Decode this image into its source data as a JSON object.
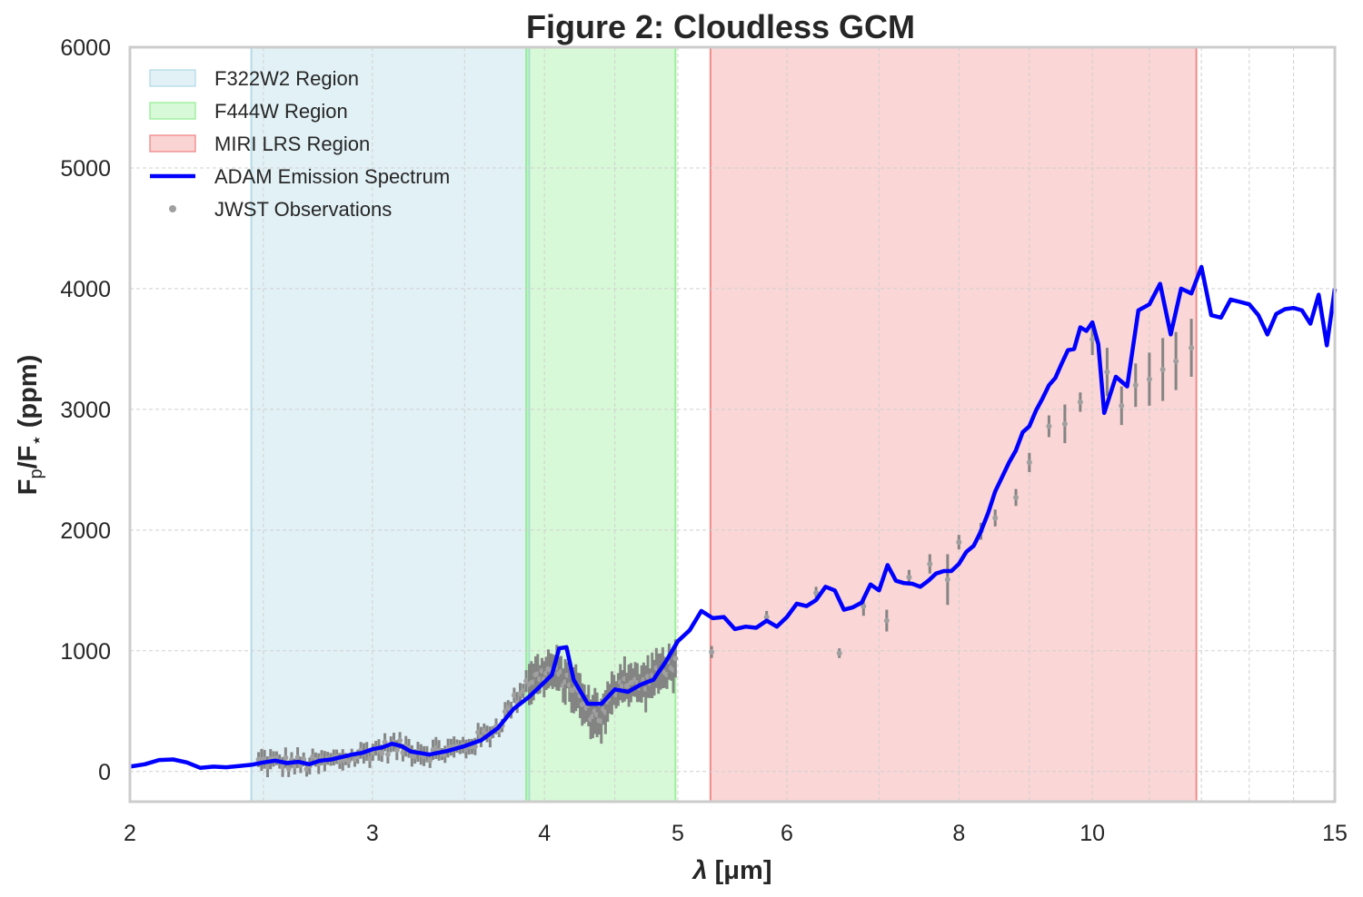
{
  "chart_data": {
    "type": "line",
    "title": "Figure 2: Cloudless GCM",
    "xlabel_symbol": "λ",
    "xlabel_unit": "[μm]",
    "ylabel_main": "F",
    "ylabel_sub1": "p",
    "ylabel_mid": "/F",
    "ylabel_sub2": "⋆",
    "ylabel_unit": " (ppm)",
    "x_scale": "log",
    "xlim": [
      2,
      15
    ],
    "ylim": [
      -250,
      6000
    ],
    "x_ticks": [
      {
        "value": 2,
        "label": "2"
      },
      {
        "value": 3,
        "label": "3"
      },
      {
        "value": 4,
        "label": "4"
      },
      {
        "value": 5,
        "label": "5"
      },
      {
        "value": 6,
        "label": "6"
      },
      {
        "value": 8,
        "label": "8"
      },
      {
        "value": 10,
        "label": "10"
      },
      {
        "value": 15,
        "label": "15"
      }
    ],
    "y_ticks": [
      {
        "value": 0,
        "label": "0"
      },
      {
        "value": 1000,
        "label": "1000"
      },
      {
        "value": 2000,
        "label": "2000"
      },
      {
        "value": 3000,
        "label": "3000"
      },
      {
        "value": 4000,
        "label": "4000"
      },
      {
        "value": 5000,
        "label": "5000"
      },
      {
        "value": 6000,
        "label": "6000"
      }
    ],
    "grid": true,
    "legend_position": "top-left",
    "regions": [
      {
        "name": "F322W2 Region",
        "x_range": [
          2.45,
          3.9
        ],
        "color": "#add8e6",
        "opacity": 0.35
      },
      {
        "name": "F444W Region",
        "x_range": [
          3.88,
          4.98
        ],
        "color": "#90ee90",
        "opacity": 0.35
      },
      {
        "name": "MIRI LRS Region",
        "x_range": [
          5.28,
          11.9
        ],
        "color": "#f08080",
        "opacity": 0.32
      }
    ],
    "series": [
      {
        "name": "ADAM Emission Spectrum",
        "color": "#0000ff",
        "x": [
          2.0,
          2.05,
          2.1,
          2.15,
          2.2,
          2.25,
          2.3,
          2.35,
          2.4,
          2.45,
          2.5,
          2.55,
          2.6,
          2.65,
          2.7,
          2.75,
          2.8,
          2.85,
          2.9,
          2.95,
          3.0,
          3.05,
          3.1,
          3.15,
          3.2,
          3.3,
          3.4,
          3.5,
          3.6,
          3.7,
          3.8,
          3.9,
          4.0,
          4.05,
          4.1,
          4.15,
          4.2,
          4.3,
          4.4,
          4.5,
          4.6,
          4.7,
          4.8,
          4.9,
          5.0,
          5.1,
          5.2,
          5.3,
          5.4,
          5.5,
          5.6,
          5.7,
          5.8,
          5.9,
          6.0,
          6.1,
          6.2,
          6.3,
          6.4,
          6.5,
          6.6,
          6.7,
          6.8,
          6.9,
          7.0,
          7.1,
          7.2,
          7.3,
          7.4,
          7.5,
          7.6,
          7.7,
          7.8,
          7.9,
          8.0,
          8.1,
          8.2,
          8.3,
          8.4,
          8.5,
          8.6,
          8.7,
          8.8,
          8.9,
          9.0,
          9.1,
          9.2,
          9.3,
          9.4,
          9.5,
          9.6,
          9.7,
          9.8,
          9.9,
          10.0,
          10.1,
          10.2,
          10.4,
          10.6,
          10.8,
          11.0,
          11.2,
          11.4,
          11.6,
          11.8,
          12.0,
          12.2,
          12.4,
          12.6,
          12.8,
          13.0,
          13.2,
          13.4,
          13.6,
          13.8,
          14.0,
          14.2,
          14.4,
          14.6,
          14.8,
          15.0
        ],
        "y": [
          40,
          60,
          95,
          100,
          75,
          30,
          40,
          35,
          45,
          55,
          75,
          90,
          70,
          80,
          60,
          90,
          100,
          120,
          140,
          155,
          185,
          200,
          230,
          210,
          165,
          140,
          170,
          210,
          260,
          360,
          520,
          620,
          740,
          800,
          1020,
          1030,
          760,
          560,
          560,
          680,
          660,
          720,
          760,
          910,
          1080,
          1170,
          1330,
          1270,
          1280,
          1180,
          1200,
          1190,
          1250,
          1200,
          1280,
          1390,
          1370,
          1420,
          1530,
          1500,
          1340,
          1360,
          1400,
          1550,
          1500,
          1710,
          1580,
          1560,
          1555,
          1530,
          1580,
          1640,
          1660,
          1660,
          1720,
          1820,
          1870,
          1990,
          2140,
          2320,
          2440,
          2560,
          2660,
          2810,
          2860,
          2990,
          3090,
          3200,
          3260,
          3380,
          3490,
          3500,
          3680,
          3650,
          3720,
          3540,
          2970,
          3270,
          3190,
          3820,
          3870,
          4040,
          3620,
          4000,
          3960,
          4180,
          3780,
          3760,
          3910,
          3890,
          3870,
          3780,
          3620,
          3790,
          3830,
          3840,
          3820,
          3710,
          3950,
          3530,
          4000
        ]
      }
    ],
    "observations": {
      "name": "JWST Observations",
      "color": "#808080",
      "nircam_f322w2": {
        "x_range": [
          2.48,
          3.88
        ],
        "count": 90,
        "points_x": [
          2.5,
          2.7,
          2.9,
          3.1,
          3.3,
          3.5,
          3.7,
          3.88
        ],
        "points_y": [
          80,
          60,
          120,
          210,
          150,
          200,
          370,
          740
        ],
        "error": 70
      },
      "nircam_f444w": {
        "x_range": [
          3.9,
          4.98
        ],
        "count": 70,
        "points_x": [
          3.9,
          4.05,
          4.2,
          4.3,
          4.4,
          4.55,
          4.7,
          4.85,
          4.98
        ],
        "points_y": [
          750,
          840,
          700,
          500,
          450,
          760,
          710,
          820,
          900
        ],
        "error": 150
      },
      "miri_lrs": {
        "points": [
          {
            "x": 5.29,
            "y": 990,
            "err": 50
          },
          {
            "x": 5.8,
            "y": 1280,
            "err": 50
          },
          {
            "x": 6.3,
            "y": 1480,
            "err": 50
          },
          {
            "x": 6.55,
            "y": 980,
            "err": 40
          },
          {
            "x": 6.82,
            "y": 1370,
            "err": 80
          },
          {
            "x": 7.09,
            "y": 1250,
            "err": 90
          },
          {
            "x": 7.36,
            "y": 1610,
            "err": 60
          },
          {
            "x": 7.62,
            "y": 1720,
            "err": 80
          },
          {
            "x": 7.85,
            "y": 1590,
            "err": 210
          },
          {
            "x": 8.0,
            "y": 1900,
            "err": 60
          },
          {
            "x": 8.3,
            "y": 1990,
            "err": 70
          },
          {
            "x": 8.5,
            "y": 2100,
            "err": 70
          },
          {
            "x": 8.8,
            "y": 2270,
            "err": 70
          },
          {
            "x": 9.0,
            "y": 2560,
            "err": 80
          },
          {
            "x": 9.3,
            "y": 2860,
            "err": 90
          },
          {
            "x": 9.55,
            "y": 2880,
            "err": 160
          },
          {
            "x": 9.8,
            "y": 3060,
            "err": 80
          },
          {
            "x": 10.0,
            "y": 3580,
            "err": 130
          },
          {
            "x": 10.25,
            "y": 3310,
            "err": 200
          },
          {
            "x": 10.5,
            "y": 3030,
            "err": 160
          },
          {
            "x": 10.75,
            "y": 3200,
            "err": 180
          },
          {
            "x": 11.0,
            "y": 3250,
            "err": 220
          },
          {
            "x": 11.25,
            "y": 3330,
            "err": 260
          },
          {
            "x": 11.5,
            "y": 3400,
            "err": 240
          },
          {
            "x": 11.8,
            "y": 3510,
            "err": 240
          }
        ]
      }
    },
    "legend": [
      {
        "label": "F322W2 Region",
        "kind": "patch",
        "color": "#add8e6"
      },
      {
        "label": "F444W Region",
        "kind": "patch",
        "color": "#90ee90"
      },
      {
        "label": "MIRI LRS Region",
        "kind": "patch",
        "color": "#f08080"
      },
      {
        "label": "ADAM Emission Spectrum",
        "kind": "line",
        "color": "#0000ff"
      },
      {
        "label": "JWST Observations",
        "kind": "marker",
        "color": "#a0a0a0"
      }
    ]
  }
}
